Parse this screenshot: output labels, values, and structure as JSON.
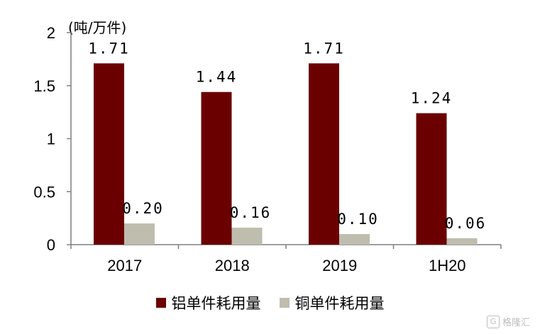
{
  "chart_data": {
    "type": "bar",
    "unit_label": "(吨/万件)",
    "categories": [
      "2017",
      "2018",
      "2019",
      "1H20"
    ],
    "series": [
      {
        "name": "铝单件耗用量",
        "color": "#6B0000",
        "values": [
          1.71,
          1.44,
          1.71,
          1.24
        ],
        "labels": [
          "1.71",
          "1.44",
          "1.71",
          "1.24"
        ]
      },
      {
        "name": "铜单件耗用量",
        "color": "#BFBDAE",
        "values": [
          0.2,
          0.16,
          0.1,
          0.06
        ],
        "labels": [
          "0.20",
          "0.16",
          "0.10",
          "0.06"
        ]
      }
    ],
    "yticks": [
      "0",
      "0.5",
      "1",
      "1.5",
      "2"
    ],
    "ylim": [
      0,
      2
    ],
    "legend_position": "bottom",
    "grid": false
  },
  "watermark": {
    "icon": "gelonghui-logo-icon",
    "text": "格隆汇"
  }
}
